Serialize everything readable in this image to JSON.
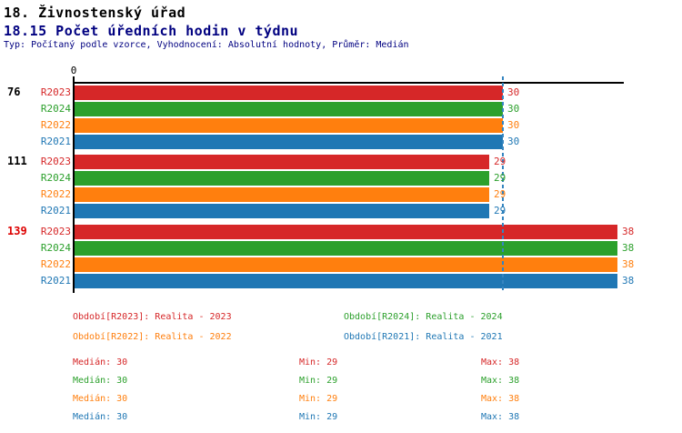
{
  "header": {
    "title": "18. Živnostenský úřad",
    "subtitle": "18.15 Počet úředních hodin v týdnu",
    "type_line": "Typ: Počítaný podle vzorce, Vyhodnocení: Absolutní hodnoty, Průměr: Medián"
  },
  "chart_data": {
    "type": "bar",
    "orientation": "horizontal",
    "title": "18.15 Počet úředních hodin v týdnu",
    "categories": [
      "76",
      "111",
      "139"
    ],
    "category_colors": [
      "#000000",
      "#000000",
      "#dd0000"
    ],
    "highlighted_category": "139",
    "series": [
      {
        "name": "R2023",
        "color": "#d62728",
        "values": [
          30,
          29,
          38
        ]
      },
      {
        "name": "R2024",
        "color": "#2ca02c",
        "values": [
          30,
          29,
          38
        ]
      },
      {
        "name": "R2022",
        "color": "#ff7f0e",
        "values": [
          30,
          29,
          38
        ]
      },
      {
        "name": "R2021",
        "color": "#1f77b4",
        "values": [
          30,
          29,
          38
        ]
      }
    ],
    "x_axis": {
      "origin_label": "0",
      "min": 0,
      "max": 38.4,
      "grid": false
    },
    "median_line": {
      "value": 30,
      "color": "#3585c0",
      "style": "dashed"
    }
  },
  "legend": {
    "rows": [
      [
        {
          "label": "Období[R2023]: Realita - 2023",
          "color": "#d62728"
        },
        {
          "label": "Období[R2024]: Realita - 2024",
          "color": "#2ca02c"
        }
      ],
      [
        {
          "label": "Období[R2022]: Realita - 2022",
          "color": "#ff7f0e"
        },
        {
          "label": "Období[R2021]: Realita - 2021",
          "color": "#1f77b4"
        }
      ]
    ]
  },
  "stats": {
    "labels": {
      "median": "Medián",
      "min": "Min",
      "max": "Max"
    },
    "rows": [
      {
        "series": "R2023",
        "color": "#d62728",
        "median": "30",
        "min": "29",
        "max": "38"
      },
      {
        "series": "R2024",
        "color": "#2ca02c",
        "median": "30",
        "min": "29",
        "max": "38"
      },
      {
        "series": "R2022",
        "color": "#ff7f0e",
        "median": "30",
        "min": "29",
        "max": "38"
      },
      {
        "series": "R2021",
        "color": "#1f77b4",
        "median": "30",
        "min": "29",
        "max": "38"
      }
    ]
  }
}
